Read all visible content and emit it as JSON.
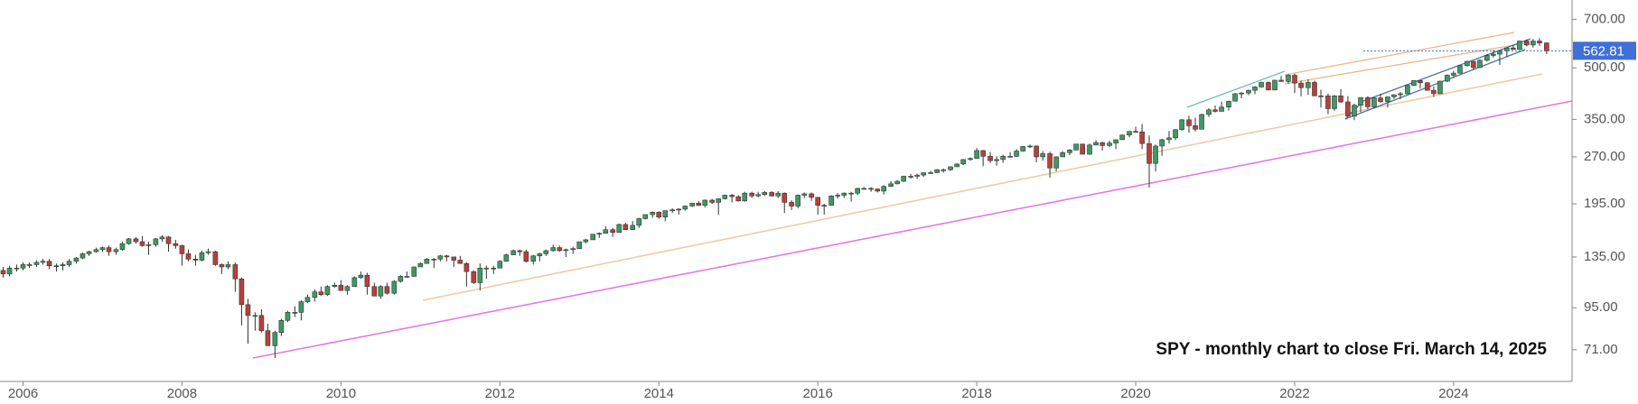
{
  "chart_data": {
    "type": "candlestick",
    "annotation": "SPY - monthly chart to close Fri. March 14, 2025",
    "log_scale": true,
    "grid": false,
    "up_color": "#3d9a64",
    "down_color": "#b8403a",
    "wick_color": "#333333",
    "last_price": 562.81,
    "last_price_color": "#3f6fd8",
    "xlim": [
      2005.71,
      2025.49
    ],
    "xticks": [
      2006,
      2008,
      2010,
      2012,
      2014,
      2016,
      2018,
      2020,
      2022,
      2024
    ],
    "ylim": [
      57,
      800
    ],
    "yticks": [
      {
        "value": 71,
        "label": "71.00"
      },
      {
        "value": 95,
        "label": "95.00"
      },
      {
        "value": 135,
        "label": "135.00"
      },
      {
        "value": 195,
        "label": "195.00"
      },
      {
        "value": 270,
        "label": "270.00"
      },
      {
        "value": 350,
        "label": "350.00"
      },
      {
        "value": 500,
        "label": "500.00"
      },
      {
        "value": 700,
        "label": "700.00"
      }
    ],
    "x": [
      2005.75,
      2005.83,
      2005.92,
      2006,
      2006.08,
      2006.17,
      2006.25,
      2006.33,
      2006.42,
      2006.5,
      2006.58,
      2006.67,
      2006.75,
      2006.83,
      2006.92,
      2007,
      2007.08,
      2007.17,
      2007.25,
      2007.33,
      2007.42,
      2007.5,
      2007.58,
      2007.67,
      2007.75,
      2007.83,
      2007.92,
      2008,
      2008.08,
      2008.17,
      2008.25,
      2008.33,
      2008.42,
      2008.5,
      2008.58,
      2008.67,
      2008.75,
      2008.83,
      2008.92,
      2009,
      2009.08,
      2009.17,
      2009.25,
      2009.33,
      2009.42,
      2009.5,
      2009.58,
      2009.67,
      2009.75,
      2009.83,
      2009.92,
      2010,
      2010.08,
      2010.17,
      2010.25,
      2010.33,
      2010.42,
      2010.5,
      2010.58,
      2010.67,
      2010.75,
      2010.83,
      2010.92,
      2011,
      2011.08,
      2011.17,
      2011.25,
      2011.33,
      2011.42,
      2011.5,
      2011.58,
      2011.67,
      2011.75,
      2011.83,
      2011.92,
      2012,
      2012.08,
      2012.17,
      2012.25,
      2012.33,
      2012.42,
      2012.5,
      2012.58,
      2012.67,
      2012.75,
      2012.83,
      2012.92,
      2013,
      2013.08,
      2013.17,
      2013.25,
      2013.33,
      2013.42,
      2013.5,
      2013.58,
      2013.67,
      2013.75,
      2013.83,
      2013.92,
      2014,
      2014.08,
      2014.17,
      2014.25,
      2014.33,
      2014.42,
      2014.5,
      2014.58,
      2014.67,
      2014.75,
      2014.83,
      2014.92,
      2015,
      2015.08,
      2015.17,
      2015.25,
      2015.33,
      2015.42,
      2015.5,
      2015.58,
      2015.67,
      2015.75,
      2015.83,
      2015.92,
      2016,
      2016.08,
      2016.17,
      2016.25,
      2016.33,
      2016.42,
      2016.5,
      2016.58,
      2016.67,
      2016.75,
      2016.83,
      2016.92,
      2017,
      2017.08,
      2017.17,
      2017.25,
      2017.33,
      2017.42,
      2017.5,
      2017.58,
      2017.67,
      2017.75,
      2017.83,
      2017.92,
      2018,
      2018.08,
      2018.17,
      2018.25,
      2018.33,
      2018.42,
      2018.5,
      2018.58,
      2018.67,
      2018.75,
      2018.83,
      2018.92,
      2019,
      2019.08,
      2019.17,
      2019.25,
      2019.33,
      2019.42,
      2019.5,
      2019.58,
      2019.67,
      2019.75,
      2019.83,
      2019.92,
      2020,
      2020.08,
      2020.17,
      2020.25,
      2020.33,
      2020.42,
      2020.5,
      2020.58,
      2020.67,
      2020.75,
      2020.83,
      2020.92,
      2021,
      2021.08,
      2021.17,
      2021.25,
      2021.33,
      2021.42,
      2021.5,
      2021.58,
      2021.67,
      2021.75,
      2021.83,
      2021.92,
      2022,
      2022.08,
      2022.17,
      2022.25,
      2022.33,
      2022.42,
      2022.5,
      2022.58,
      2022.67,
      2022.75,
      2022.83,
      2022.92,
      2023,
      2023.08,
      2023.17,
      2023.25,
      2023.33,
      2023.42,
      2023.5,
      2023.58,
      2023.67,
      2023.75,
      2023.83,
      2023.92,
      2024,
      2024.08,
      2024.17,
      2024.25,
      2024.33,
      2024.42,
      2024.5,
      2024.58,
      2024.67,
      2024.75,
      2024.83,
      2024.92,
      2025,
      2025.08,
      2025.17
    ],
    "open": [
      123,
      120,
      125,
      125,
      128,
      128,
      130,
      131,
      127,
      127,
      128,
      131,
      134,
      138,
      140,
      142,
      144,
      140,
      142,
      148,
      153,
      150,
      146,
      147,
      153,
      155,
      148,
      146,
      138,
      133,
      132,
      139,
      140,
      128,
      126,
      128,
      116,
      97,
      90,
      90,
      81,
      73,
      80,
      87,
      92,
      92,
      99,
      102,
      106,
      104,
      110,
      111,
      107,
      110,
      117,
      119,
      110,
      103,
      110,
      105,
      114,
      118,
      118,
      126,
      129,
      133,
      133,
      136,
      135,
      132,
      129,
      122,
      113,
      125,
      125,
      125,
      131,
      137,
      141,
      140,
      131,
      136,
      138,
      141,
      144,
      141,
      142,
      143,
      150,
      152,
      158,
      159,
      163,
      160,
      169,
      163,
      168,
      176,
      181,
      184,
      178,
      186,
      187,
      188,
      192,
      196,
      193,
      200,
      197,
      202,
      207,
      205,
      199,
      210,
      206,
      208,
      211,
      206,
      210,
      197,
      192,
      207,
      209,
      204,
      193,
      193,
      206,
      207,
      210,
      210,
      217,
      217,
      216,
      213,
      220,
      224,
      228,
      236,
      236,
      238,
      242,
      242,
      247,
      247,
      252,
      257,
      265,
      267,
      282,
      271,
      263,
      265,
      271,
      271,
      281,
      290,
      291,
      270,
      276,
      250,
      270,
      278,
      283,
      295,
      275,
      293,
      298,
      292,
      297,
      304,
      314,
      322,
      321,
      296,
      258,
      291,
      304,
      308,
      326,
      349,
      335,
      327,
      362,
      374,
      370,
      381,
      397,
      418,
      420,
      428,
      438,
      452,
      429,
      459,
      455,
      475,
      450,
      436,
      452,
      412,
      412,
      377,
      412,
      395,
      358,
      386,
      407,
      382,
      406,
      396,
      409,
      415,
      418,
      443,
      458,
      451,
      428,
      418,
      456,
      475,
      482,
      508,
      523,
      501,
      527,
      545,
      550,
      563,
      574,
      568,
      602,
      586,
      602,
      594
    ],
    "high": [
      126,
      127,
      128,
      130,
      130,
      132,
      133,
      133,
      129,
      130,
      133,
      135,
      139,
      141,
      144,
      145,
      146,
      144,
      150,
      154,
      155,
      156,
      150,
      154,
      157,
      156,
      152,
      147,
      142,
      137,
      141,
      143,
      141,
      129,
      131,
      130,
      117,
      101,
      92,
      94,
      85,
      81,
      88,
      93,
      96,
      100,
      104,
      108,
      110,
      111,
      113,
      115,
      111,
      118,
      122,
      121,
      113,
      111,
      113,
      115,
      119,
      122,
      126,
      130,
      134,
      134,
      137,
      137,
      135,
      136,
      130,
      123,
      129,
      127,
      127,
      132,
      138,
      142,
      142,
      142,
      137,
      139,
      142,
      147,
      146,
      143,
      145,
      150,
      153,
      158,
      160,
      167,
      165,
      170,
      171,
      173,
      177,
      181,
      185,
      185,
      186,
      189,
      189,
      193,
      196,
      199,
      201,
      202,
      202,
      208,
      209,
      207,
      212,
      212,
      212,
      213,
      213,
      213,
      211,
      200,
      208,
      211,
      211,
      204,
      195,
      207,
      210,
      211,
      212,
      218,
      219,
      219,
      217,
      222,
      228,
      230,
      237,
      240,
      240,
      242,
      245,
      248,
      249,
      253,
      258,
      266,
      269,
      287,
      283,
      279,
      271,
      274,
      279,
      285,
      291,
      294,
      292,
      281,
      280,
      271,
      281,
      285,
      295,
      295,
      296,
      303,
      300,
      302,
      304,
      315,
      323,
      333,
      339,
      313,
      294,
      306,
      323,
      327,
      351,
      359,
      354,
      364,
      378,
      385,
      396,
      398,
      420,
      423,
      430,
      441,
      454,
      455,
      460,
      473,
      479,
      480,
      458,
      462,
      458,
      430,
      418,
      414,
      432,
      411,
      390,
      408,
      411,
      409,
      418,
      410,
      416,
      423,
      445,
      459,
      457,
      453,
      439,
      457,
      478,
      490,
      510,
      525,
      524,
      530,
      550,
      565,
      565,
      575,
      586,
      604,
      609,
      611,
      614,
      597
    ],
    "low": [
      117,
      118,
      122,
      123,
      125,
      126,
      128,
      124,
      122,
      123,
      126,
      129,
      133,
      136,
      139,
      140,
      136,
      137,
      141,
      147,
      148,
      145,
      137,
      145,
      150,
      140,
      143,
      127,
      131,
      127,
      131,
      137,
      127,
      120,
      124,
      106,
      84,
      74,
      81,
      80,
      73,
      67,
      78,
      86,
      89,
      87,
      98,
      99,
      103,
      103,
      109,
      107,
      104,
      110,
      116,
      104,
      103,
      101,
      104,
      104,
      113,
      117,
      119,
      126,
      129,
      125,
      131,
      131,
      126,
      129,
      110,
      112,
      107,
      116,
      120,
      127,
      131,
      137,
      136,
      130,
      128,
      131,
      136,
      140,
      140,
      135,
      138,
      145,
      148,
      152,
      154,
      159,
      155,
      160,
      163,
      163,
      165,
      175,
      177,
      176,
      173,
      183,
      181,
      186,
      191,
      192,
      190,
      195,
      181,
      201,
      197,
      198,
      198,
      203,
      204,
      206,
      205,
      203,
      183,
      187,
      189,
      203,
      199,
      181,
      181,
      193,
      202,
      203,
      198,
      207,
      215,
      212,
      211,
      208,
      219,
      223,
      227,
      232,
      232,
      235,
      240,
      241,
      242,
      245,
      252,
      255,
      263,
      267,
      253,
      259,
      254,
      259,
      269,
      270,
      280,
      287,
      260,
      263,
      234,
      244,
      270,
      273,
      283,
      275,
      274,
      293,
      282,
      289,
      285,
      304,
      309,
      320,
      285,
      218,
      244,
      272,
      296,
      303,
      324,
      319,
      322,
      327,
      356,
      367,
      370,
      372,
      398,
      405,
      414,
      417,
      436,
      428,
      428,
      455,
      448,
      420,
      411,
      415,
      411,
      380,
      363,
      371,
      392,
      357,
      348,
      368,
      375,
      377,
      393,
      380,
      403,
      403,
      416,
      441,
      433,
      427,
      409,
      418,
      453,
      466,
      484,
      505,
      493,
      500,
      522,
      537,
      510,
      539,
      567,
      567,
      580,
      575,
      582,
      550
    ],
    "close": [
      120,
      125,
      125,
      128,
      128,
      130,
      131,
      127,
      127,
      128,
      131,
      134,
      138,
      140,
      142,
      144,
      140,
      142,
      148,
      153,
      150,
      146,
      147,
      153,
      155,
      148,
      146,
      138,
      133,
      132,
      139,
      140,
      128,
      126,
      128,
      116,
      97,
      90,
      90,
      81,
      73,
      80,
      87,
      92,
      92,
      99,
      102,
      106,
      104,
      110,
      111,
      107,
      110,
      117,
      119,
      110,
      103,
      110,
      105,
      114,
      118,
      118,
      126,
      129,
      133,
      133,
      136,
      135,
      132,
      129,
      122,
      113,
      125,
      125,
      125,
      131,
      137,
      141,
      140,
      131,
      136,
      138,
      141,
      144,
      141,
      142,
      143,
      150,
      152,
      158,
      159,
      163,
      160,
      169,
      163,
      168,
      176,
      181,
      184,
      178,
      186,
      187,
      188,
      192,
      196,
      193,
      200,
      197,
      202,
      207,
      205,
      199,
      210,
      206,
      208,
      211,
      206,
      210,
      197,
      192,
      207,
      209,
      204,
      193,
      193,
      206,
      207,
      210,
      210,
      217,
      217,
      216,
      213,
      220,
      224,
      228,
      236,
      236,
      238,
      242,
      242,
      247,
      247,
      252,
      257,
      265,
      267,
      282,
      271,
      263,
      265,
      271,
      271,
      281,
      290,
      291,
      270,
      276,
      250,
      270,
      278,
      283,
      295,
      275,
      293,
      298,
      292,
      297,
      304,
      314,
      322,
      321,
      296,
      258,
      291,
      304,
      308,
      326,
      349,
      335,
      327,
      362,
      374,
      370,
      381,
      397,
      418,
      420,
      428,
      438,
      452,
      429,
      459,
      455,
      475,
      450,
      436,
      452,
      412,
      412,
      377,
      412,
      395,
      358,
      386,
      407,
      382,
      406,
      396,
      409,
      415,
      418,
      443,
      458,
      451,
      428,
      418,
      456,
      475,
      482,
      508,
      523,
      501,
      527,
      545,
      550,
      563,
      574,
      568,
      602,
      586,
      602,
      594,
      562.81
    ]
  }
}
